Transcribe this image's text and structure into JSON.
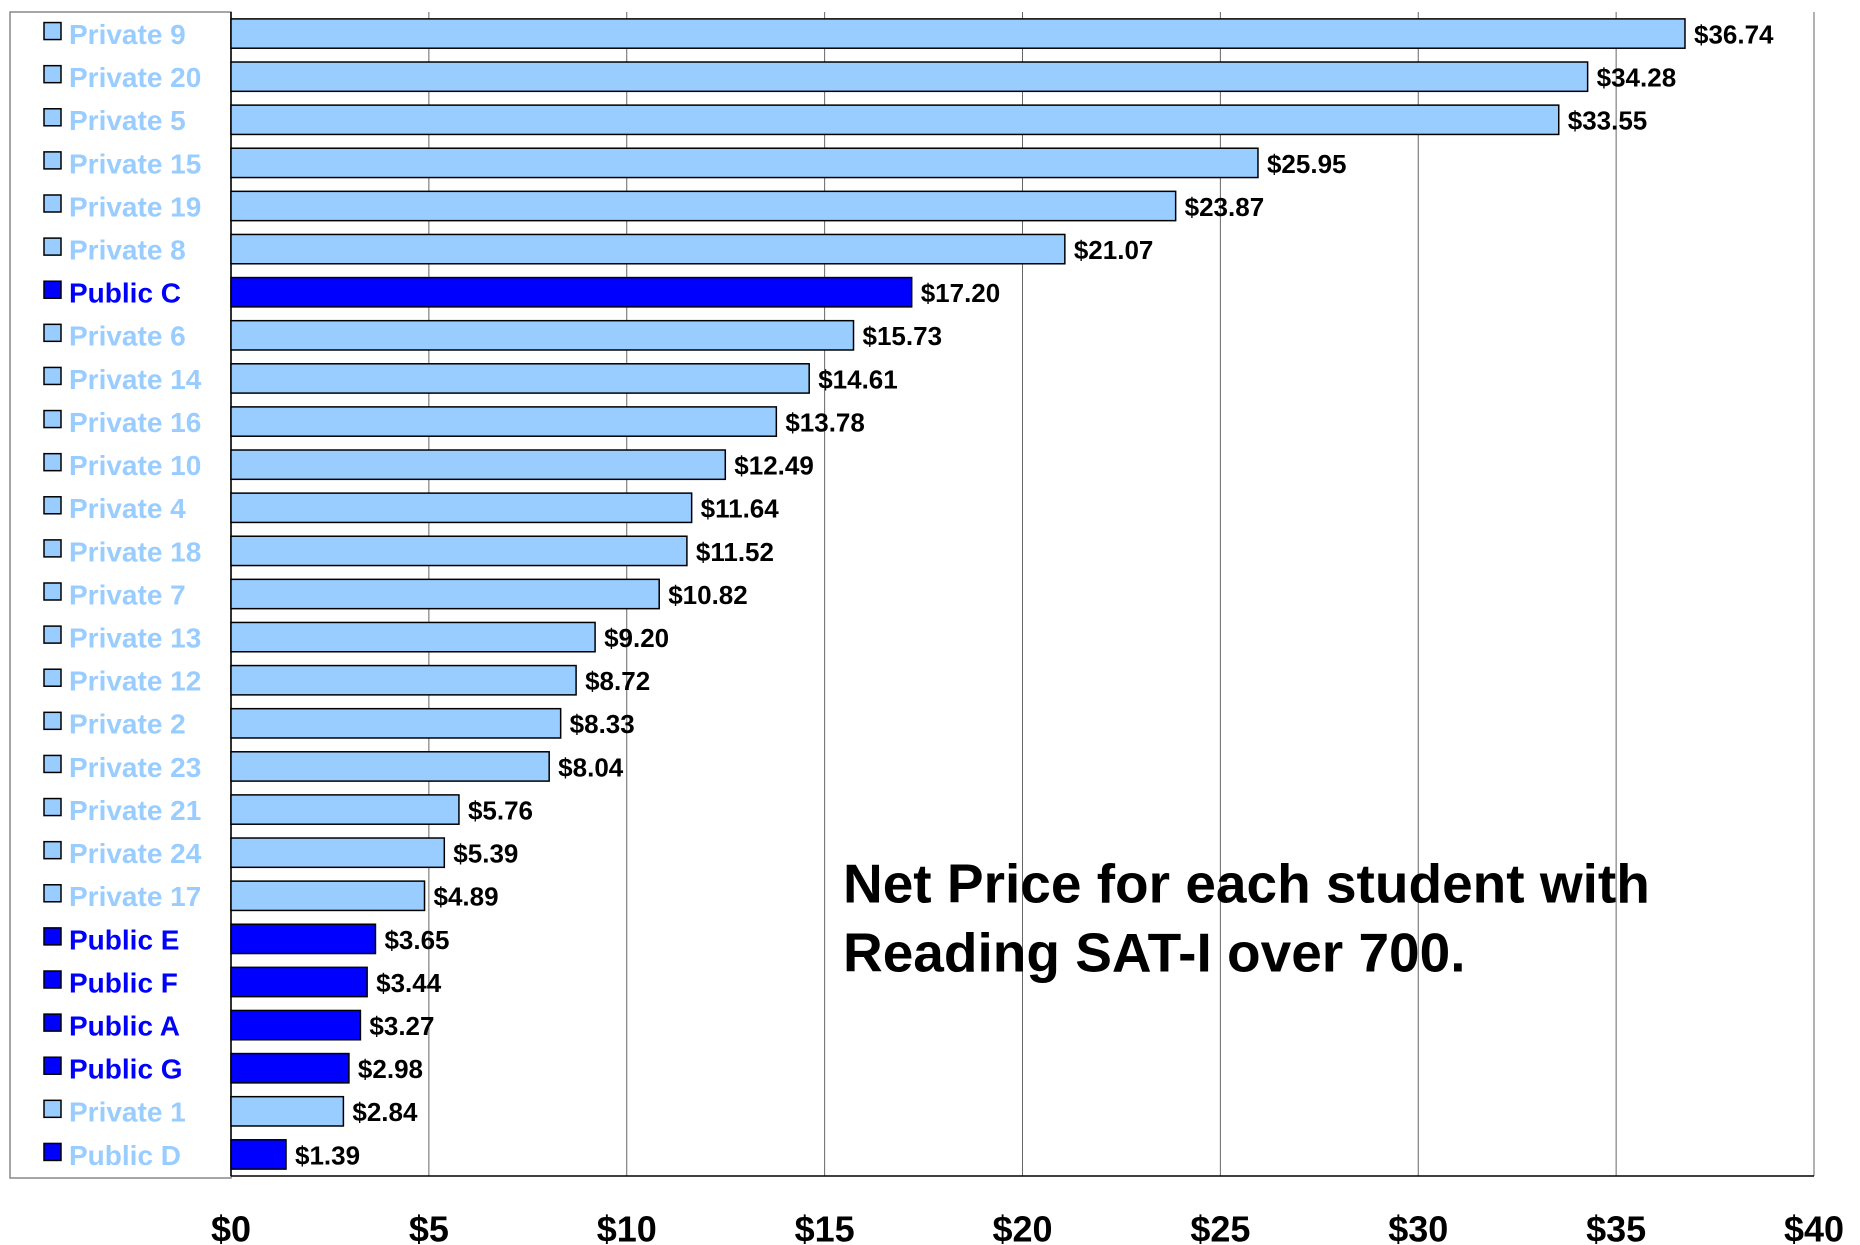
{
  "chart_data": {
    "type": "barh",
    "annotation": [
      "Net Price for each student with",
      "Reading SAT-I over 700."
    ],
    "categories": [
      "Private 9",
      "Private 20",
      "Private 5",
      "Private 15",
      "Private 19",
      "Private 8",
      "Public C",
      "Private 6",
      "Private 14",
      "Private 16",
      "Private 10",
      "Private 4",
      "Private 18",
      "Private 7",
      "Private 13",
      "Private 12",
      "Private 2",
      "Private 23",
      "Private 21",
      "Private 24",
      "Private 17",
      "Public E",
      "Public F",
      "Public A",
      "Public G",
      "Private 1",
      "Public D"
    ],
    "values": [
      36.74,
      34.28,
      33.55,
      25.95,
      23.87,
      21.07,
      17.2,
      15.73,
      14.61,
      13.78,
      12.49,
      11.64,
      11.52,
      10.82,
      9.2,
      8.72,
      8.33,
      8.04,
      5.76,
      5.39,
      4.89,
      3.65,
      3.44,
      3.27,
      2.98,
      2.84,
      1.39
    ],
    "value_labels": [
      "$36.74",
      "$34.28",
      "$33.55",
      "$25.95",
      "$23.87",
      "$21.07",
      "$17.20",
      "$15.73",
      "$14.61",
      "$13.78",
      "$12.49",
      "$11.64",
      "$11.52",
      "$10.82",
      "$9.20",
      "$8.72",
      "$8.33",
      "$8.04",
      "$5.76",
      "$5.39",
      "$4.89",
      "$3.65",
      "$3.44",
      "$3.27",
      "$2.98",
      "$2.84",
      "$1.39"
    ],
    "colors": [
      "#99ccff",
      "#99ccff",
      "#99ccff",
      "#99ccff",
      "#99ccff",
      "#99ccff",
      "#0000ff",
      "#99ccff",
      "#99ccff",
      "#99ccff",
      "#99ccff",
      "#99ccff",
      "#99ccff",
      "#99ccff",
      "#99ccff",
      "#99ccff",
      "#99ccff",
      "#99ccff",
      "#99ccff",
      "#99ccff",
      "#99ccff",
      "#0000ff",
      "#0000ff",
      "#0000ff",
      "#0000ff",
      "#99ccff",
      "#0000ff"
    ],
    "label_colors": [
      "#99ccff",
      "#99ccff",
      "#99ccff",
      "#99ccff",
      "#99ccff",
      "#99ccff",
      "#0000ff",
      "#99ccff",
      "#99ccff",
      "#99ccff",
      "#99ccff",
      "#99ccff",
      "#99ccff",
      "#99ccff",
      "#99ccff",
      "#99ccff",
      "#99ccff",
      "#99ccff",
      "#99ccff",
      "#99ccff",
      "#99ccff",
      "#0000ff",
      "#0000ff",
      "#0000ff",
      "#0000ff",
      "#99ccff",
      "#99ccff"
    ],
    "xlim": [
      0,
      40
    ],
    "xticks": [
      {
        "value": 0,
        "label": "$0"
      },
      {
        "value": 5,
        "label": "$5"
      },
      {
        "value": 10,
        "label": "$10"
      },
      {
        "value": 15,
        "label": "$15"
      },
      {
        "value": 20,
        "label": "$20"
      },
      {
        "value": 25,
        "label": "$25"
      },
      {
        "value": 30,
        "label": "$30"
      },
      {
        "value": 35,
        "label": "$35"
      },
      {
        "value": 40,
        "label": "$40"
      }
    ],
    "grid": true
  }
}
